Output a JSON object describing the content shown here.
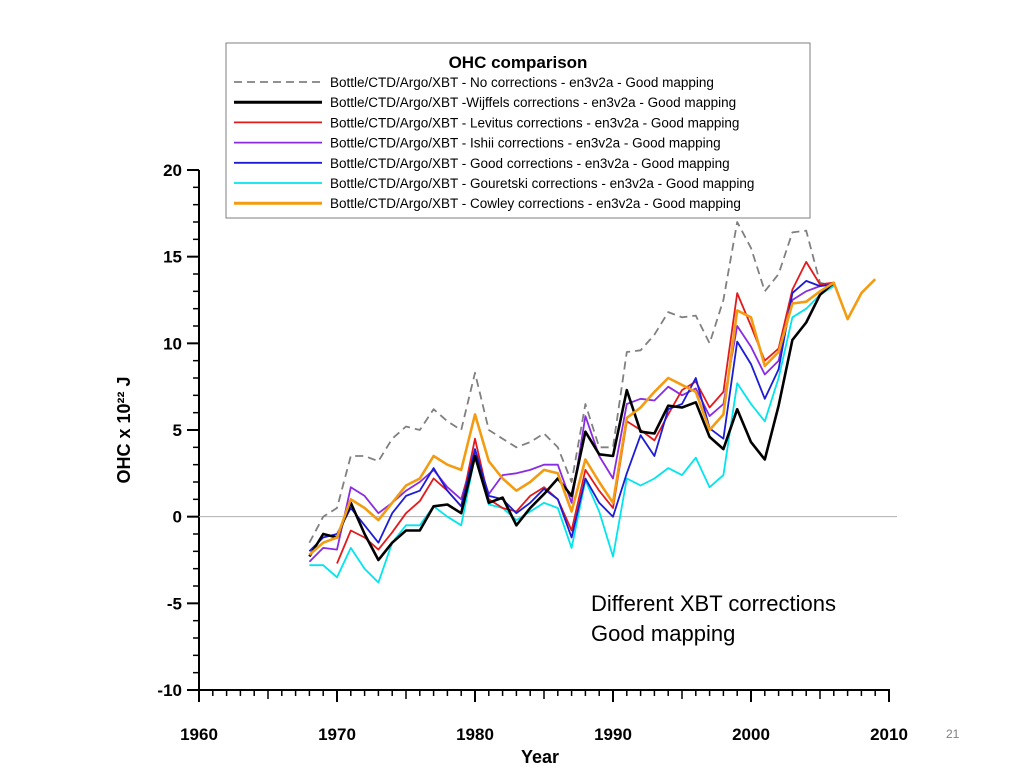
{
  "page_number": "21",
  "chart_data": {
    "type": "line",
    "title": "OHC comparison",
    "xlabel": "Year",
    "ylabel": "OHC x 10²² J",
    "xlim": [
      1960,
      2010
    ],
    "ylim": [
      -10,
      20
    ],
    "xticks": [
      1960,
      1970,
      1980,
      1990,
      2000,
      2010
    ],
    "yticks": [
      -10,
      -5,
      0,
      5,
      10,
      15,
      20
    ],
    "x_minor_step": 1,
    "y_minor_step": 1,
    "zero_line": true,
    "grid": false,
    "legend_position": "top",
    "annotation": [
      "Different XBT corrections",
      "Good mapping"
    ],
    "series": [
      {
        "name": "Bottle/CTD/Argo/XBT - No corrections - en3v2a - Good mapping",
        "color": "#808080",
        "dash": "dashed",
        "x": [
          1968,
          1969,
          1970,
          1971,
          1972,
          1973,
          1974,
          1975,
          1976,
          1977,
          1978,
          1979,
          1980,
          1981,
          1982,
          1983,
          1984,
          1985,
          1986,
          1987,
          1988,
          1989,
          1990,
          1991,
          1992,
          1993,
          1994,
          1995,
          1996,
          1997,
          1998,
          1999,
          2000,
          2001,
          2002,
          2003,
          2004,
          2005,
          2006
        ],
        "y": [
          -1.5,
          0.0,
          0.5,
          3.5,
          3.5,
          3.2,
          4.5,
          5.2,
          5.0,
          6.2,
          5.5,
          5.0,
          8.3,
          5.0,
          4.5,
          4.0,
          4.3,
          4.8,
          4.0,
          2.0,
          6.5,
          4.0,
          4.0,
          9.5,
          9.6,
          10.5,
          11.8,
          11.5,
          11.6,
          10.0,
          12.5,
          17.0,
          15.5,
          13.0,
          14.0,
          16.4,
          16.5,
          13.5,
          13.3
        ]
      },
      {
        "name": "Bottle/CTD/Argo/XBT -Wijffels corrections - en3v2a - Good mapping",
        "color": "#000000",
        "dash": "solid",
        "x": [
          1968,
          1969,
          1970,
          1971,
          1972,
          1973,
          1974,
          1975,
          1976,
          1977,
          1978,
          1979,
          1980,
          1981,
          1982,
          1983,
          1984,
          1985,
          1986,
          1987,
          1988,
          1989,
          1990,
          1991,
          1992,
          1993,
          1994,
          1995,
          1996,
          1997,
          1998,
          1999,
          2000,
          2001,
          2002,
          2003,
          2004,
          2005,
          2006
        ],
        "y": [
          -2.3,
          -1.0,
          -1.2,
          0.8,
          -1.0,
          -2.5,
          -1.5,
          -0.8,
          -0.8,
          0.6,
          0.7,
          0.2,
          3.5,
          0.8,
          1.1,
          -0.5,
          0.5,
          1.3,
          2.2,
          1.2,
          4.9,
          3.6,
          3.5,
          7.3,
          4.9,
          4.8,
          6.4,
          6.3,
          6.6,
          4.6,
          3.9,
          6.2,
          4.3,
          3.3,
          6.4,
          10.2,
          11.2,
          12.8,
          13.5
        ]
      },
      {
        "name": "Bottle/CTD/Argo/XBT - Levitus corrections - en3v2a - Good mapping",
        "color": "#e31a1c",
        "dash": "solid",
        "x": [
          1970,
          1971,
          1972,
          1973,
          1974,
          1975,
          1976,
          1977,
          1978,
          1979,
          1980,
          1981,
          1982,
          1983,
          1984,
          1985,
          1986,
          1987,
          1988,
          1989,
          1990,
          1991,
          1992,
          1993,
          1994,
          1995,
          1996,
          1997,
          1998,
          1999,
          2000,
          2001,
          2002,
          2003,
          2004,
          2005,
          2006
        ],
        "y": [
          -2.7,
          -0.8,
          -1.2,
          -1.9,
          -0.9,
          0.2,
          0.9,
          2.2,
          1.5,
          0.6,
          4.5,
          1.0,
          0.5,
          0.3,
          1.2,
          1.7,
          1.0,
          -0.8,
          2.7,
          1.5,
          0.5,
          5.5,
          5.0,
          4.4,
          5.9,
          7.3,
          7.8,
          6.3,
          7.2,
          12.9,
          11.0,
          9.0,
          9.7,
          13.1,
          14.7,
          13.4,
          13.5
        ]
      },
      {
        "name": "Bottle/CTD/Argo/XBT - Ishii corrections - en3v2a - Good mapping",
        "color": "#8a2be2",
        "dash": "solid",
        "x": [
          1968,
          1969,
          1970,
          1971,
          1972,
          1973,
          1974,
          1975,
          1976,
          1977,
          1978,
          1979,
          1980,
          1981,
          1982,
          1983,
          1984,
          1985,
          1986,
          1987,
          1988,
          1989,
          1990,
          1991,
          1992,
          1993,
          1994,
          1995,
          1996,
          1997,
          1998,
          1999,
          2000,
          2001,
          2002,
          2003,
          2004,
          2005,
          2006
        ],
        "y": [
          -2.6,
          -1.8,
          -1.9,
          1.7,
          1.2,
          0.2,
          0.8,
          1.5,
          2.0,
          2.7,
          1.7,
          1.0,
          3.8,
          1.3,
          2.4,
          2.5,
          2.7,
          3.0,
          3.0,
          0.8,
          5.8,
          3.5,
          2.2,
          6.5,
          6.8,
          6.7,
          7.5,
          7.0,
          7.4,
          5.8,
          6.5,
          11.0,
          9.8,
          8.2,
          9.0,
          12.5,
          13.0,
          13.3,
          13.5
        ]
      },
      {
        "name": "Bottle/CTD/Argo/XBT - Good corrections - en3v2a - Good mapping",
        "color": "#1c1cd6",
        "dash": "solid",
        "x": [
          1968,
          1969,
          1970,
          1971,
          1972,
          1973,
          1974,
          1975,
          1976,
          1977,
          1978,
          1979,
          1980,
          1981,
          1982,
          1983,
          1984,
          1985,
          1986,
          1987,
          1988,
          1989,
          1990,
          1991,
          1992,
          1993,
          1994,
          1995,
          1996,
          1997,
          1998,
          1999,
          2000,
          2001,
          2002,
          2003,
          2004,
          2005,
          2006
        ],
        "y": [
          -2.0,
          -1.2,
          -1.0,
          0.5,
          -0.5,
          -1.5,
          0.2,
          1.2,
          1.5,
          2.8,
          1.5,
          0.6,
          3.9,
          1.2,
          1.0,
          0.2,
          0.8,
          1.6,
          1.0,
          -1.2,
          2.2,
          0.8,
          0.0,
          2.5,
          4.7,
          3.5,
          6.2,
          6.5,
          8.0,
          5.1,
          4.5,
          10.1,
          8.8,
          6.8,
          8.5,
          12.9,
          13.6,
          13.3,
          13.4
        ]
      },
      {
        "name": "Bottle/CTD/Argo/XBT - Gouretski corrections - en3v2a - Good mapping",
        "color": "#00e5ee",
        "dash": "solid",
        "x": [
          1968,
          1969,
          1970,
          1971,
          1972,
          1973,
          1974,
          1975,
          1976,
          1977,
          1978,
          1979,
          1980,
          1981,
          1982,
          1983,
          1984,
          1985,
          1986,
          1987,
          1988,
          1989,
          1990,
          1991,
          1992,
          1993,
          1994,
          1995,
          1996,
          1997,
          1998,
          1999,
          2000,
          2001,
          2002,
          2003,
          2004,
          2005,
          2006
        ],
        "y": [
          -2.8,
          -2.8,
          -3.5,
          -1.8,
          -3.0,
          -3.8,
          -1.5,
          -0.5,
          -0.5,
          0.6,
          0.0,
          -0.5,
          3.5,
          0.7,
          0.5,
          -0.2,
          0.3,
          0.8,
          0.5,
          -1.8,
          2.1,
          0.3,
          -2.3,
          2.2,
          1.8,
          2.2,
          2.8,
          2.4,
          3.4,
          1.7,
          2.4,
          7.7,
          6.5,
          5.5,
          8.0,
          11.5,
          12.0,
          12.8,
          13.3
        ]
      },
      {
        "name": "Bottle/CTD/Argo/XBT - Cowley corrections - en3v2a - Good mapping",
        "color": "#f39c12",
        "dash": "solid",
        "x": [
          1968,
          1969,
          1970,
          1971,
          1972,
          1973,
          1974,
          1975,
          1976,
          1977,
          1978,
          1979,
          1980,
          1981,
          1982,
          1983,
          1984,
          1985,
          1986,
          1987,
          1988,
          1989,
          1990,
          1991,
          1992,
          1993,
          1994,
          1995,
          1996,
          1997,
          1998,
          1999,
          2000,
          2001,
          2002,
          2003,
          2004,
          2005,
          2006,
          2007,
          2008,
          2009
        ],
        "y": [
          -2.2,
          -1.5,
          -1.2,
          1.0,
          0.5,
          -0.2,
          0.8,
          1.8,
          2.2,
          3.5,
          3.0,
          2.7,
          5.9,
          3.2,
          2.2,
          1.5,
          2.0,
          2.7,
          2.5,
          0.3,
          3.3,
          2.0,
          0.8,
          5.7,
          6.3,
          7.2,
          8.0,
          7.6,
          7.2,
          5.0,
          5.9,
          11.9,
          11.5,
          8.7,
          9.5,
          12.3,
          12.4,
          13.0,
          13.5,
          11.4,
          12.9,
          13.7
        ]
      }
    ]
  }
}
